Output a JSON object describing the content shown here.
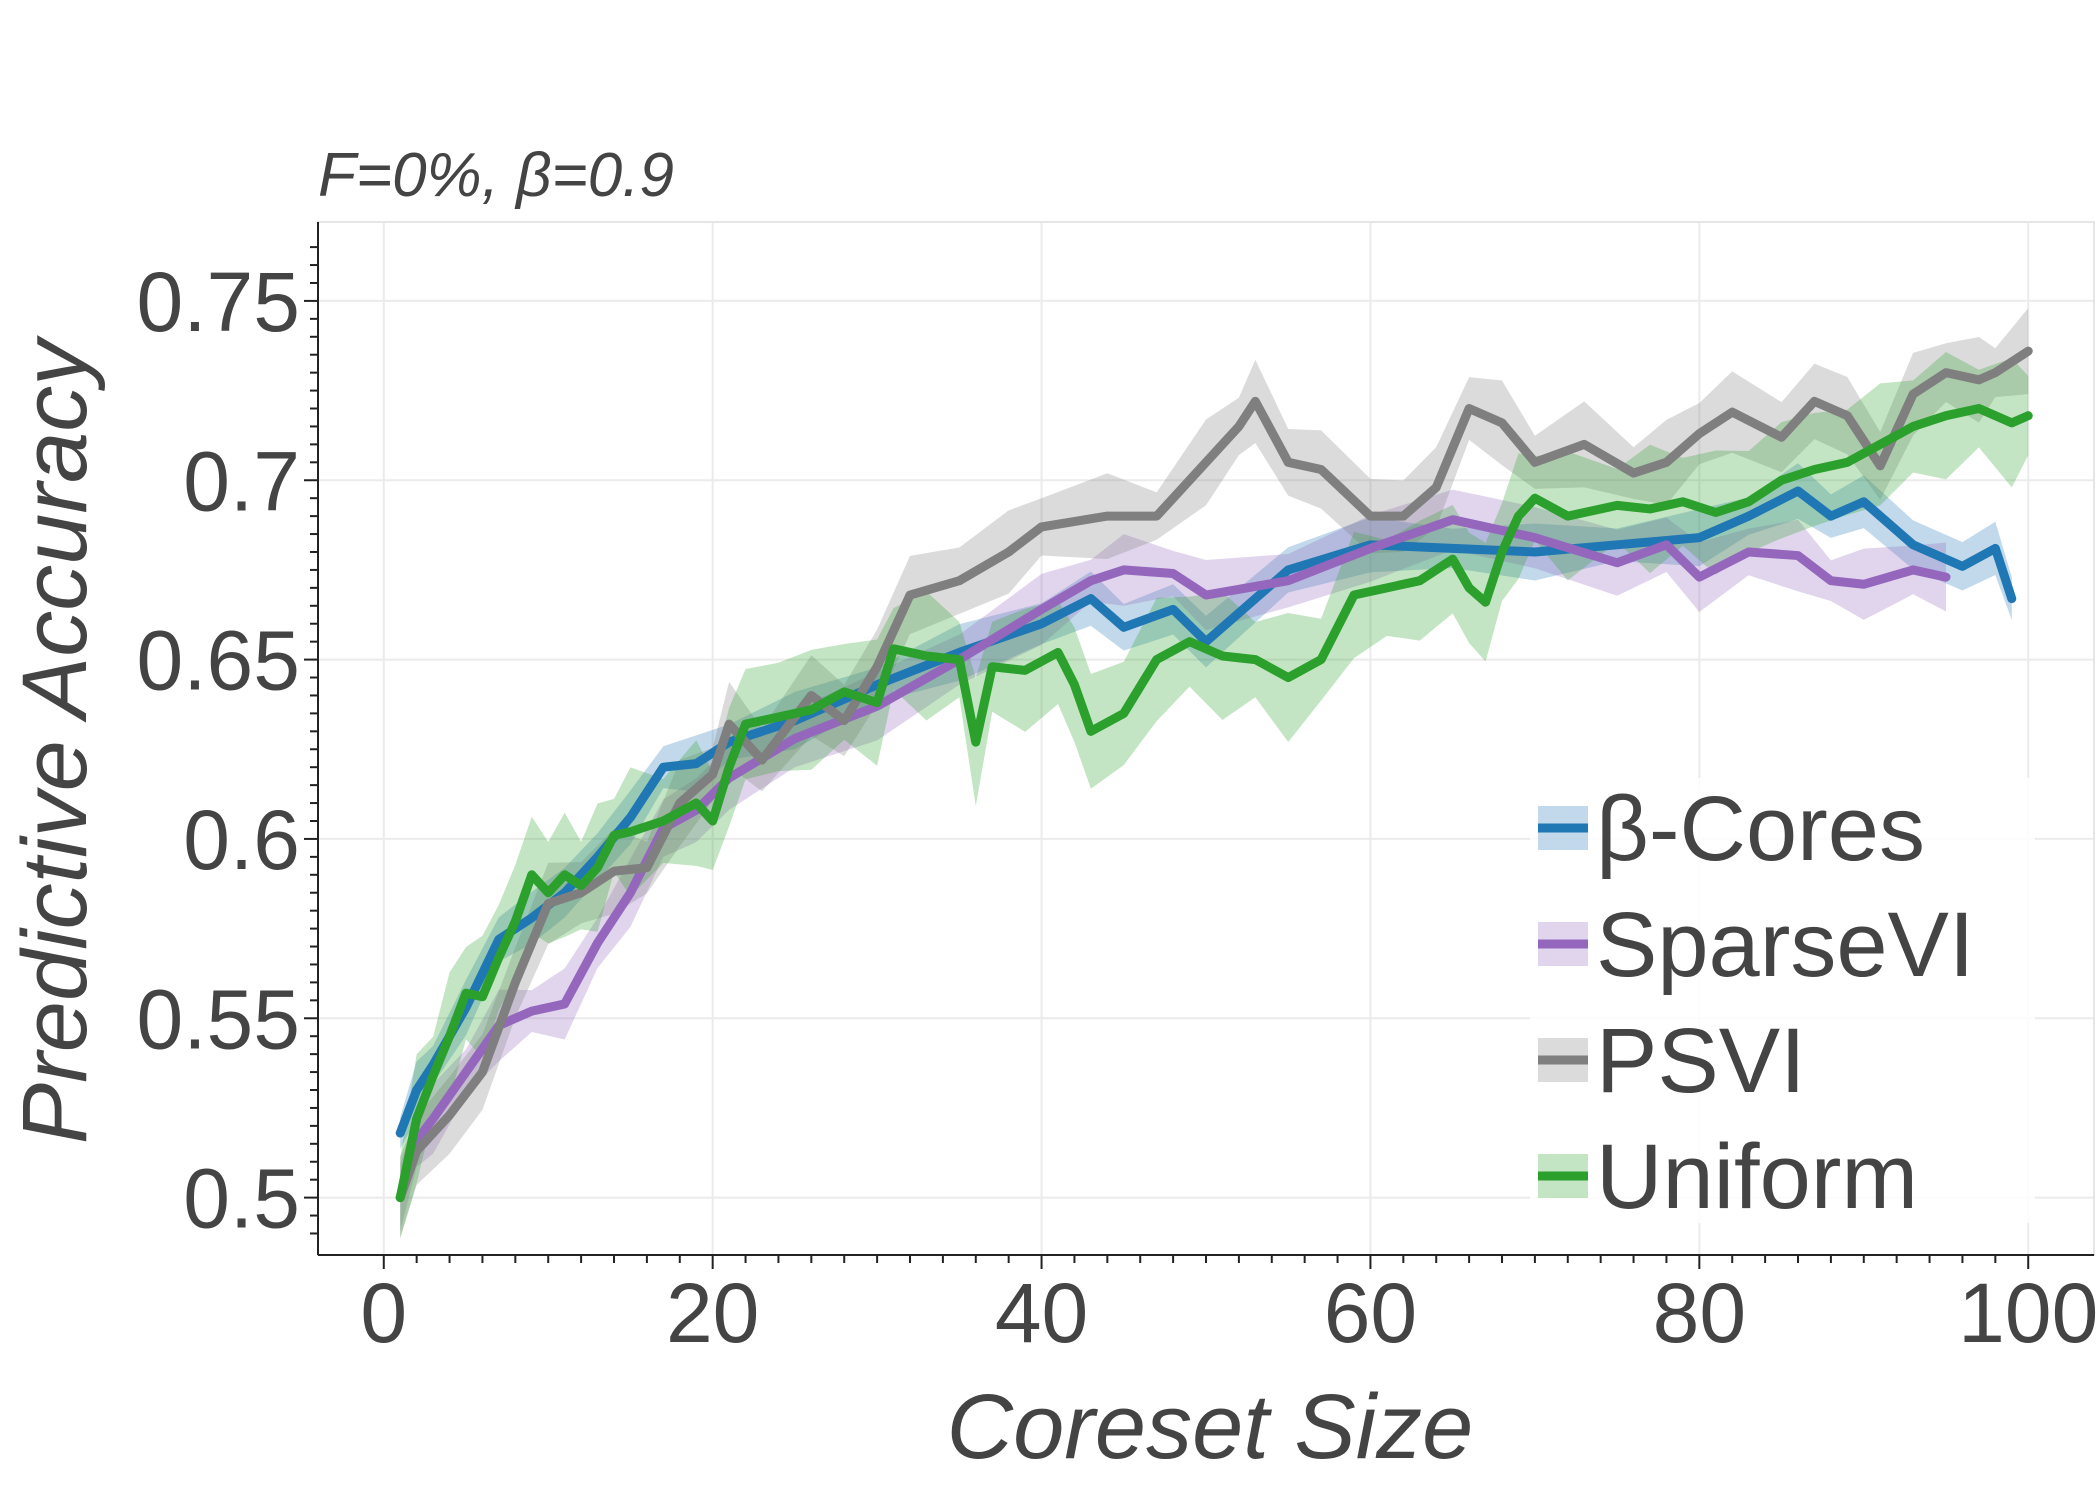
{
  "chart_data": {
    "type": "line",
    "title": "F=0%,  β=0.9",
    "xlabel": "Coreset Size",
    "ylabel": "Predictive Accuracy",
    "xlim": [
      -4,
      104
    ],
    "ylim": [
      0.484,
      0.772
    ],
    "xticks": [
      0,
      20,
      40,
      60,
      80,
      100
    ],
    "xtick_labels": [
      "0",
      "20",
      "40",
      "60",
      "80",
      "100"
    ],
    "yticks": [
      0.5,
      0.55,
      0.6,
      0.65,
      0.7,
      0.75
    ],
    "ytick_labels": [
      "0.5",
      "0.55",
      "0.6",
      "0.65",
      "0.7",
      "0.75"
    ],
    "grid": true,
    "legend_position": "lower-right",
    "series": [
      {
        "name": "β-Cores",
        "color": "#1f77b4",
        "x": [
          1,
          2,
          3,
          5,
          7,
          9,
          11,
          13,
          15,
          17,
          19,
          21,
          25,
          30,
          35,
          40,
          43,
          45,
          48,
          50,
          55,
          60,
          65,
          70,
          75,
          80,
          83,
          86,
          88,
          90,
          93,
          96,
          98,
          99
        ],
        "y": [
          0.518,
          0.53,
          0.537,
          0.553,
          0.572,
          0.578,
          0.585,
          0.595,
          0.606,
          0.62,
          0.621,
          0.627,
          0.633,
          0.643,
          0.652,
          0.66,
          0.667,
          0.659,
          0.664,
          0.655,
          0.675,
          0.682,
          0.681,
          0.68,
          0.682,
          0.684,
          0.69,
          0.697,
          0.69,
          0.694,
          0.682,
          0.676,
          0.681,
          0.667
        ],
        "band": 0.008
      },
      {
        "name": "SparseVI",
        "color": "#9467bd",
        "x": [
          1,
          2,
          3,
          5,
          7,
          9,
          11,
          13,
          15,
          17,
          19,
          21,
          25,
          30,
          35,
          40,
          43,
          45,
          48,
          50,
          55,
          60,
          65,
          70,
          75,
          78,
          80,
          83,
          86,
          88,
          90,
          93,
          95
        ],
        "y": [
          0.5,
          0.516,
          0.522,
          0.535,
          0.548,
          0.552,
          0.554,
          0.571,
          0.585,
          0.603,
          0.608,
          0.617,
          0.628,
          0.637,
          0.65,
          0.664,
          0.672,
          0.675,
          0.674,
          0.668,
          0.672,
          0.681,
          0.689,
          0.684,
          0.677,
          0.682,
          0.673,
          0.68,
          0.679,
          0.672,
          0.671,
          0.675,
          0.673
        ],
        "band": 0.01
      },
      {
        "name": "PSVI",
        "color": "#7f7f7f",
        "x": [
          1,
          2,
          4,
          6,
          8,
          10,
          12,
          14,
          16,
          18,
          20,
          21,
          23,
          26,
          28,
          30,
          32,
          35,
          38,
          40,
          44,
          47,
          50,
          52,
          53,
          55,
          57,
          60,
          62,
          64,
          66,
          68,
          70,
          73,
          76,
          78,
          80,
          82,
          85,
          87,
          89,
          91,
          93,
          95,
          97,
          98,
          100
        ],
        "y": [
          0.5,
          0.513,
          0.523,
          0.535,
          0.56,
          0.582,
          0.585,
          0.591,
          0.592,
          0.61,
          0.618,
          0.632,
          0.622,
          0.64,
          0.633,
          0.648,
          0.668,
          0.672,
          0.68,
          0.687,
          0.69,
          0.69,
          0.705,
          0.715,
          0.722,
          0.705,
          0.703,
          0.69,
          0.69,
          0.698,
          0.72,
          0.716,
          0.705,
          0.71,
          0.702,
          0.705,
          0.713,
          0.719,
          0.712,
          0.722,
          0.718,
          0.704,
          0.724,
          0.73,
          0.728,
          0.73,
          0.736
        ],
        "band": 0.012
      },
      {
        "name": "Uniform",
        "color": "#2ca02c",
        "x": [
          1,
          2,
          3,
          4,
          5,
          6,
          7,
          8,
          9,
          10,
          11,
          12,
          13,
          14,
          15,
          17,
          19,
          20,
          21,
          22,
          24,
          26,
          28,
          30,
          31,
          33,
          35,
          36,
          37,
          39,
          41,
          42,
          43,
          45,
          47,
          49,
          51,
          53,
          55,
          57,
          59,
          61,
          63,
          65,
          66,
          67,
          68,
          69,
          70,
          72,
          75,
          77,
          79,
          81,
          83,
          85,
          87,
          89,
          91,
          93,
          95,
          97,
          99,
          100
        ],
        "y": [
          0.5,
          0.522,
          0.534,
          0.545,
          0.557,
          0.556,
          0.567,
          0.577,
          0.59,
          0.585,
          0.59,
          0.587,
          0.592,
          0.601,
          0.602,
          0.605,
          0.61,
          0.605,
          0.62,
          0.632,
          0.634,
          0.636,
          0.641,
          0.638,
          0.653,
          0.651,
          0.65,
          0.627,
          0.648,
          0.647,
          0.652,
          0.643,
          0.63,
          0.635,
          0.65,
          0.655,
          0.651,
          0.65,
          0.645,
          0.65,
          0.668,
          0.67,
          0.672,
          0.678,
          0.67,
          0.666,
          0.68,
          0.69,
          0.695,
          0.69,
          0.693,
          0.692,
          0.694,
          0.691,
          0.694,
          0.7,
          0.703,
          0.705,
          0.71,
          0.715,
          0.718,
          0.72,
          0.716,
          0.718
        ],
        "band": 0.018
      }
    ]
  }
}
